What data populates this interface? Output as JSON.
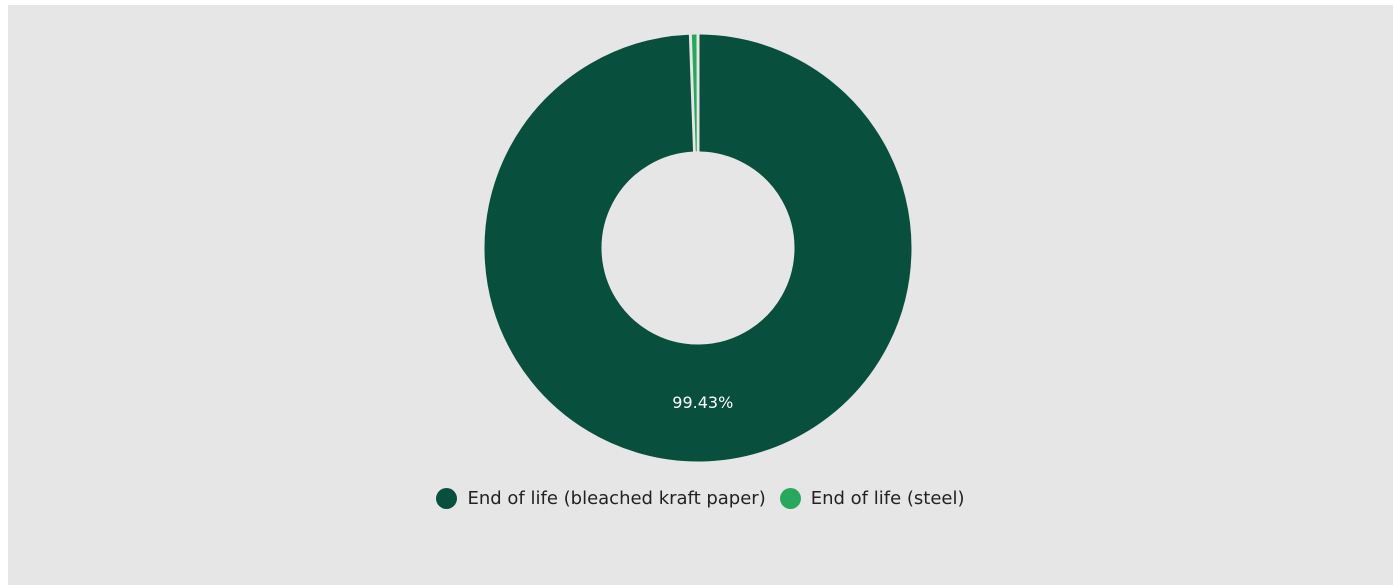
{
  "chart_data": {
    "type": "pie",
    "variant": "donut",
    "categories": [
      "End of life (bleached kraft paper)",
      "End of life (steel)"
    ],
    "values": [
      99.43,
      0.57
    ],
    "unit": "%",
    "data_labels": [
      "99.43%",
      ""
    ],
    "colors": [
      "#094f3e",
      "#28a85a"
    ],
    "background": "#e6e6e6",
    "legend_position": "bottom"
  },
  "legend": {
    "items": [
      {
        "label": "End of life (bleached kraft paper)",
        "color": "#094f3e"
      },
      {
        "label": "End of life (steel)",
        "color": "#28a85a"
      }
    ]
  }
}
